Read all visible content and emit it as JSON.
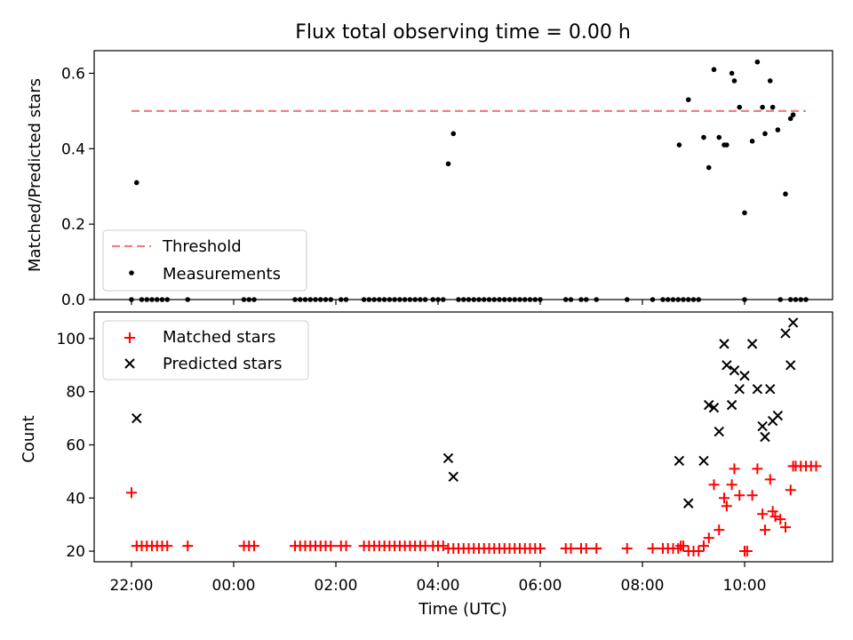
{
  "title": "Flux total observing time = 0.00 h",
  "chart_data": [
    {
      "type": "scatter",
      "ylabel": "Matched/Predicted stars",
      "ylim": [
        0,
        0.66
      ],
      "yticks": [
        0.0,
        0.2,
        0.4,
        0.6
      ],
      "ytick_labels": [
        "0.0",
        "0.2",
        "0.4",
        "0.6"
      ],
      "xticks_hours": [
        22,
        24,
        26,
        28,
        30,
        32,
        34
      ],
      "legend": {
        "location": "lower-left",
        "entries": [
          "Threshold",
          "Measurements"
        ]
      },
      "threshold": {
        "name": "Threshold",
        "value": 0.5,
        "x_range_hours": [
          22.0,
          35.2
        ],
        "color": "#f08080"
      },
      "measurements": {
        "name": "Measurements",
        "color": "#000000",
        "points": [
          [
            22.1,
            0.31
          ],
          [
            22.0,
            0.0
          ],
          [
            22.2,
            0.0
          ],
          [
            22.3,
            0.0
          ],
          [
            22.4,
            0.0
          ],
          [
            22.5,
            0.0
          ],
          [
            22.6,
            0.0
          ],
          [
            22.7,
            0.0
          ],
          [
            23.1,
            0.0
          ],
          [
            24.2,
            0.0
          ],
          [
            24.3,
            0.0
          ],
          [
            24.4,
            0.0
          ],
          [
            25.2,
            0.0
          ],
          [
            25.3,
            0.0
          ],
          [
            25.4,
            0.0
          ],
          [
            25.5,
            0.0
          ],
          [
            25.6,
            0.0
          ],
          [
            25.7,
            0.0
          ],
          [
            25.8,
            0.0
          ],
          [
            25.9,
            0.0
          ],
          [
            26.1,
            0.0
          ],
          [
            26.2,
            0.0
          ],
          [
            26.55,
            0.0
          ],
          [
            26.65,
            0.0
          ],
          [
            26.75,
            0.0
          ],
          [
            26.85,
            0.0
          ],
          [
            26.95,
            0.0
          ],
          [
            27.05,
            0.0
          ],
          [
            27.15,
            0.0
          ],
          [
            27.25,
            0.0
          ],
          [
            27.35,
            0.0
          ],
          [
            27.45,
            0.0
          ],
          [
            27.55,
            0.0
          ],
          [
            27.65,
            0.0
          ],
          [
            27.75,
            0.0
          ],
          [
            27.9,
            0.0
          ],
          [
            28.0,
            0.0
          ],
          [
            28.1,
            0.0
          ],
          [
            28.2,
            0.36
          ],
          [
            28.3,
            0.44
          ],
          [
            28.4,
            0.0
          ],
          [
            28.5,
            0.0
          ],
          [
            28.6,
            0.0
          ],
          [
            28.7,
            0.0
          ],
          [
            28.8,
            0.0
          ],
          [
            28.9,
            0.0
          ],
          [
            29.0,
            0.0
          ],
          [
            29.1,
            0.0
          ],
          [
            29.2,
            0.0
          ],
          [
            29.3,
            0.0
          ],
          [
            29.4,
            0.0
          ],
          [
            29.5,
            0.0
          ],
          [
            29.6,
            0.0
          ],
          [
            29.7,
            0.0
          ],
          [
            29.8,
            0.0
          ],
          [
            29.9,
            0.0
          ],
          [
            30.0,
            0.0
          ],
          [
            30.5,
            0.0
          ],
          [
            30.6,
            0.0
          ],
          [
            30.8,
            0.0
          ],
          [
            30.9,
            0.0
          ],
          [
            31.1,
            0.0
          ],
          [
            31.7,
            0.0
          ],
          [
            32.2,
            0.0
          ],
          [
            32.4,
            0.0
          ],
          [
            32.5,
            0.0
          ],
          [
            32.6,
            0.0
          ],
          [
            32.7,
            0.0
          ],
          [
            32.8,
            0.0
          ],
          [
            32.9,
            0.0
          ],
          [
            33.0,
            0.0
          ],
          [
            33.1,
            0.0
          ],
          [
            32.72,
            0.41
          ],
          [
            32.9,
            0.53
          ],
          [
            33.2,
            0.43
          ],
          [
            33.3,
            0.35
          ],
          [
            33.4,
            0.61
          ],
          [
            33.5,
            0.43
          ],
          [
            33.6,
            0.41
          ],
          [
            33.65,
            0.41
          ],
          [
            33.75,
            0.6
          ],
          [
            33.8,
            0.58
          ],
          [
            33.9,
            0.51
          ],
          [
            34.0,
            0.23
          ],
          [
            34.15,
            0.42
          ],
          [
            34.25,
            0.63
          ],
          [
            34.35,
            0.51
          ],
          [
            34.4,
            0.44
          ],
          [
            34.5,
            0.58
          ],
          [
            34.55,
            0.51
          ],
          [
            34.65,
            0.45
          ],
          [
            34.8,
            0.28
          ],
          [
            34.9,
            0.48
          ],
          [
            34.95,
            0.49
          ],
          [
            34.0,
            0.0
          ],
          [
            34.7,
            0.0
          ],
          [
            34.9,
            0.0
          ],
          [
            35.0,
            0.0
          ],
          [
            35.1,
            0.0
          ],
          [
            35.2,
            0.0
          ]
        ]
      }
    },
    {
      "type": "scatter",
      "ylabel": "Count",
      "xlabel": "Time (UTC)",
      "ylim": [
        16,
        110
      ],
      "yticks": [
        20,
        40,
        60,
        80,
        100
      ],
      "ytick_labels": [
        "20",
        "40",
        "60",
        "80",
        "100"
      ],
      "xticks_hours": [
        22,
        24,
        26,
        28,
        30,
        32,
        34
      ],
      "xtick_labels": [
        "22:00",
        "00:00",
        "02:00",
        "04:00",
        "06:00",
        "08:00",
        "10:00"
      ],
      "legend": {
        "location": "upper-left",
        "entries": [
          "Matched stars",
          "Predicted stars"
        ]
      },
      "series": [
        {
          "name": "Matched stars",
          "marker": "plus",
          "color": "#ff0000",
          "points": [
            [
              22.0,
              42
            ],
            [
              22.1,
              22
            ],
            [
              22.2,
              22
            ],
            [
              22.3,
              22
            ],
            [
              22.4,
              22
            ],
            [
              22.5,
              22
            ],
            [
              22.6,
              22
            ],
            [
              22.7,
              22
            ],
            [
              23.1,
              22
            ],
            [
              24.2,
              22
            ],
            [
              24.3,
              22
            ],
            [
              24.4,
              22
            ],
            [
              25.2,
              22
            ],
            [
              25.3,
              22
            ],
            [
              25.4,
              22
            ],
            [
              25.5,
              22
            ],
            [
              25.6,
              22
            ],
            [
              25.7,
              22
            ],
            [
              25.8,
              22
            ],
            [
              25.9,
              22
            ],
            [
              26.1,
              22
            ],
            [
              26.2,
              22
            ],
            [
              26.55,
              22
            ],
            [
              26.65,
              22
            ],
            [
              26.75,
              22
            ],
            [
              26.85,
              22
            ],
            [
              26.95,
              22
            ],
            [
              27.05,
              22
            ],
            [
              27.15,
              22
            ],
            [
              27.25,
              22
            ],
            [
              27.35,
              22
            ],
            [
              27.45,
              22
            ],
            [
              27.55,
              22
            ],
            [
              27.65,
              22
            ],
            [
              27.75,
              22
            ],
            [
              27.9,
              22
            ],
            [
              28.0,
              22
            ],
            [
              28.1,
              22
            ],
            [
              28.2,
              21
            ],
            [
              28.3,
              21
            ],
            [
              28.4,
              21
            ],
            [
              28.5,
              21
            ],
            [
              28.6,
              21
            ],
            [
              28.7,
              21
            ],
            [
              28.8,
              21
            ],
            [
              28.9,
              21
            ],
            [
              29.0,
              21
            ],
            [
              29.1,
              21
            ],
            [
              29.2,
              21
            ],
            [
              29.3,
              21
            ],
            [
              29.4,
              21
            ],
            [
              29.5,
              21
            ],
            [
              29.6,
              21
            ],
            [
              29.7,
              21
            ],
            [
              29.8,
              21
            ],
            [
              29.9,
              21
            ],
            [
              30.0,
              21
            ],
            [
              30.5,
              21
            ],
            [
              30.6,
              21
            ],
            [
              30.8,
              21
            ],
            [
              30.9,
              21
            ],
            [
              31.1,
              21
            ],
            [
              31.7,
              21
            ],
            [
              32.2,
              21
            ],
            [
              32.4,
              21
            ],
            [
              32.5,
              21
            ],
            [
              32.6,
              21
            ],
            [
              32.7,
              21
            ],
            [
              32.75,
              22
            ],
            [
              32.8,
              22
            ],
            [
              32.9,
              20
            ],
            [
              33.0,
              20
            ],
            [
              33.1,
              20
            ],
            [
              33.2,
              22
            ],
            [
              33.3,
              25
            ],
            [
              33.4,
              45
            ],
            [
              33.5,
              28
            ],
            [
              33.6,
              40
            ],
            [
              33.65,
              37
            ],
            [
              33.75,
              45
            ],
            [
              33.8,
              51
            ],
            [
              33.9,
              41
            ],
            [
              34.0,
              20
            ],
            [
              34.05,
              20
            ],
            [
              34.15,
              41
            ],
            [
              34.25,
              51
            ],
            [
              34.35,
              34
            ],
            [
              34.4,
              28
            ],
            [
              34.5,
              47
            ],
            [
              34.55,
              35
            ],
            [
              34.6,
              33
            ],
            [
              34.7,
              32
            ],
            [
              34.8,
              29
            ],
            [
              34.9,
              43
            ],
            [
              34.95,
              52
            ],
            [
              35.0,
              52
            ],
            [
              35.1,
              52
            ],
            [
              35.2,
              52
            ],
            [
              35.3,
              52
            ],
            [
              35.4,
              52
            ]
          ]
        },
        {
          "name": "Predicted stars",
          "marker": "x",
          "color": "#000000",
          "points": [
            [
              22.1,
              70
            ],
            [
              28.2,
              55
            ],
            [
              28.3,
              48
            ],
            [
              32.72,
              54
            ],
            [
              32.9,
              38
            ],
            [
              33.2,
              54
            ],
            [
              33.3,
              75
            ],
            [
              33.4,
              74
            ],
            [
              33.5,
              65
            ],
            [
              33.6,
              98
            ],
            [
              33.65,
              90
            ],
            [
              33.75,
              75
            ],
            [
              33.8,
              88
            ],
            [
              33.9,
              81
            ],
            [
              34.0,
              86
            ],
            [
              34.15,
              98
            ],
            [
              34.25,
              81
            ],
            [
              34.35,
              67
            ],
            [
              34.4,
              63
            ],
            [
              34.5,
              81
            ],
            [
              34.55,
              69
            ],
            [
              34.65,
              71
            ],
            [
              34.8,
              102
            ],
            [
              34.9,
              90
            ],
            [
              34.95,
              106
            ]
          ]
        }
      ]
    }
  ]
}
